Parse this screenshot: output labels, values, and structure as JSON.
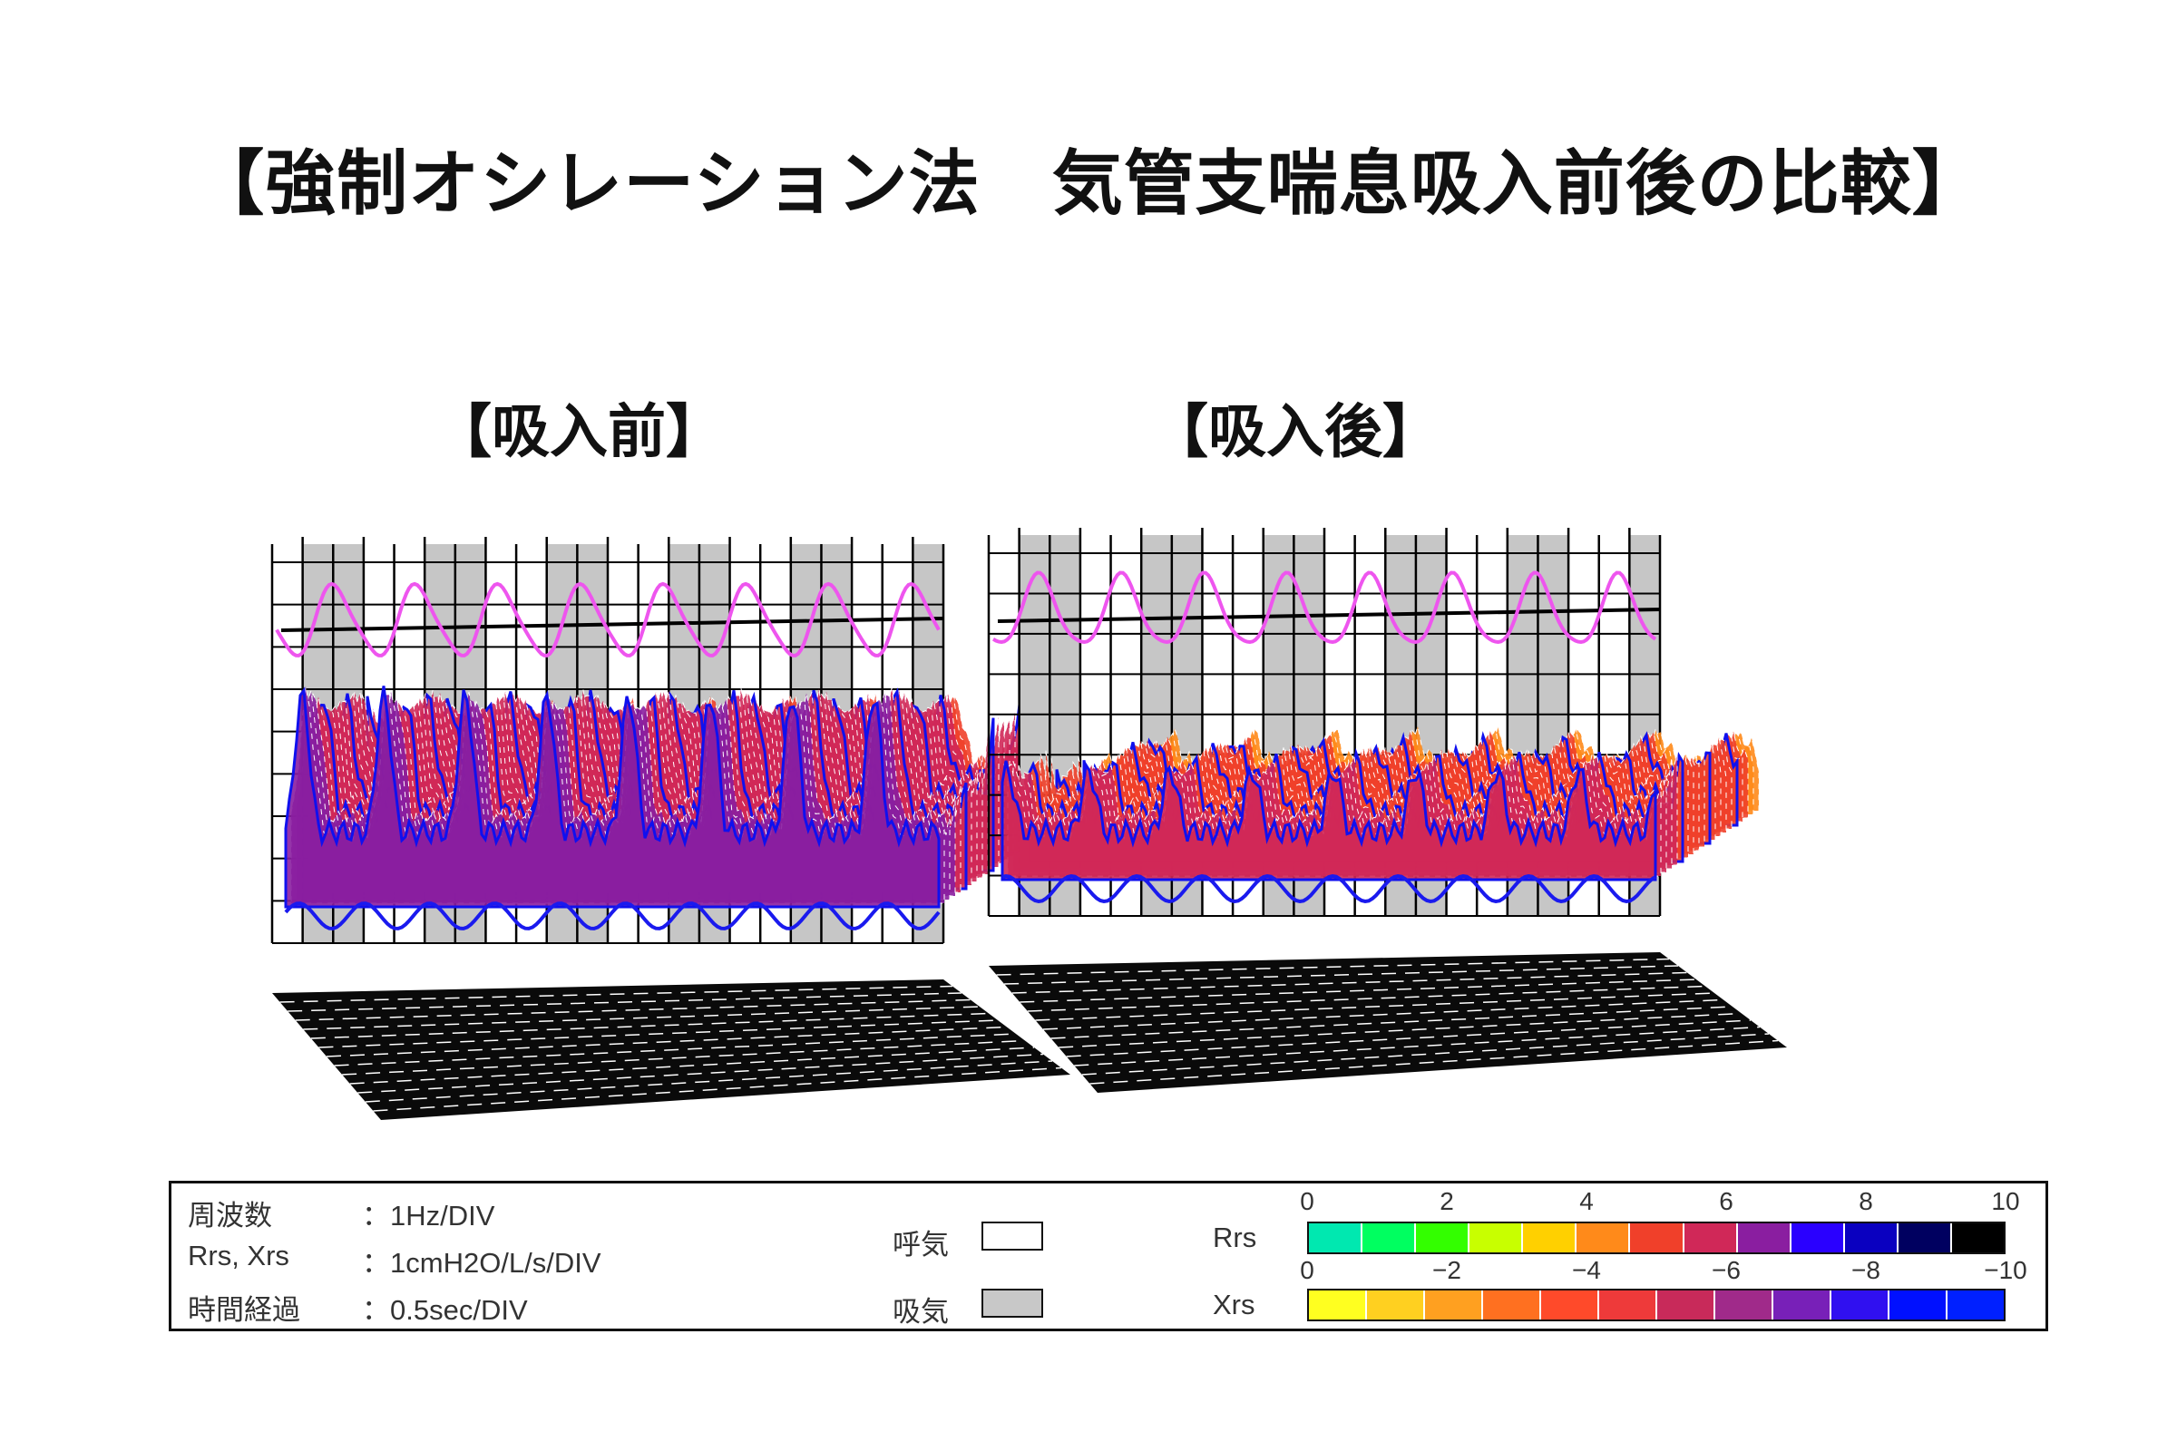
{
  "title": "【強制オシレーション法　気管支喘息吸入前後の比較】",
  "panels": [
    {
      "label": "【吸入前】",
      "rrs_scale": 0.55,
      "amp": 1.0,
      "baseline": 0.55
    },
    {
      "label": "【吸入後】",
      "rrs_scale": 0.32,
      "amp": 0.45,
      "baseline": 0.35
    }
  ],
  "chart_data": {
    "type": "area",
    "description_series": [
      "Rrs",
      "Xrs"
    ],
    "panels": [
      "【吸入前】",
      "【吸入後】"
    ]
  },
  "legend": {
    "rows": [
      {
        "label": "周波数",
        "value": "：1Hz/DIV"
      },
      {
        "label": "Rrs, Xrs",
        "value": "：1cmH2O/L/s/DIV"
      },
      {
        "label": "時間経過",
        "value": "：0.5sec/DIV"
      }
    ],
    "expiration": "呼気",
    "inspiration": "吸気",
    "rrs_label": "Rrs",
    "xrs_label": "Xrs",
    "rrs_ticks": [
      "0",
      "2",
      "4",
      "6",
      "8",
      "10"
    ],
    "xrs_ticks": [
      "0",
      "−2",
      "−4",
      "−6",
      "−8",
      "−10"
    ],
    "rrs_colors": [
      "#00e8b0",
      "#00ff60",
      "#33ff00",
      "#c8ff00",
      "#ffd000",
      "#ff8a1a",
      "#f0402a",
      "#d02858",
      "#8a1ea0",
      "#2a00ff",
      "#0a00c0",
      "#000060",
      "#000000"
    ],
    "xrs_colors": [
      "#ffff20",
      "#ffd020",
      "#ffa020",
      "#ff7020",
      "#ff4a2a",
      "#ee3a3a",
      "#c82a5a",
      "#a02a8a",
      "#7820b8",
      "#3010f0",
      "#0010ff",
      "#0020ff"
    ]
  }
}
